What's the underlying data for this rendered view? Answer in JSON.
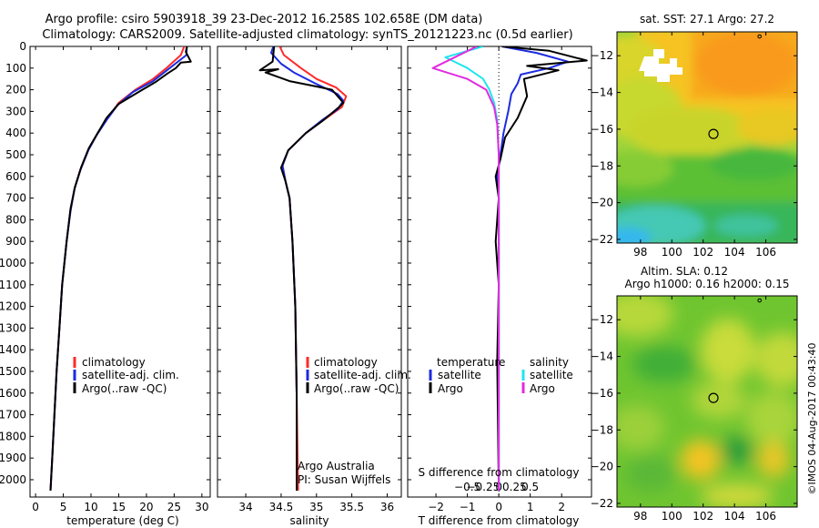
{
  "header": {
    "line1": "Argo profile: csiro 5903918_39 23-Dec-2012 16.258S 102.658E (DM data)",
    "line2": "Climatology: CARS2009. Satellite-adjusted climatology: synTS_20121223.nc (0.5d earlier)"
  },
  "colors": {
    "climatology": "#ff2a2a",
    "satellite": "#1c2be0",
    "argo": "#000000",
    "s_satellite": "#1fe5f0",
    "s_argo": "#e12be0"
  },
  "chart_data": [
    {
      "type": "line",
      "id": "temperature",
      "xlabel": "temperature (deg C)",
      "xlim": [
        -1,
        31.5
      ],
      "ylim": [
        2080,
        0
      ],
      "xticks": [
        0,
        5,
        10,
        15,
        20,
        25,
        30
      ],
      "yticks": [
        0,
        100,
        200,
        300,
        400,
        500,
        600,
        700,
        800,
        900,
        1000,
        1100,
        1200,
        1300,
        1400,
        1500,
        1600,
        1700,
        1800,
        1900,
        2000
      ],
      "legend": [
        "climatology",
        "satellite-adj. clim.",
        "Argo(..raw -QC)"
      ],
      "series": [
        {
          "name": "climatology",
          "color": "#ff2a2a",
          "points": [
            [
              26.8,
              0
            ],
            [
              26.2,
              40
            ],
            [
              23.6,
              100
            ],
            [
              21.2,
              150
            ],
            [
              18,
              200
            ],
            [
              15,
              260
            ],
            [
              13,
              330
            ],
            [
              11.2,
              400
            ],
            [
              9.6,
              470
            ],
            [
              8.2,
              560
            ],
            [
              7.1,
              650
            ],
            [
              6.3,
              750
            ],
            [
              5.6,
              900
            ],
            [
              4.8,
              1100
            ],
            [
              4.3,
              1300
            ],
            [
              3.8,
              1500
            ],
            [
              3.4,
              1700
            ],
            [
              3.0,
              1900
            ],
            [
              2.7,
              2050
            ]
          ]
        },
        {
          "name": "satellite-adj. clim.",
          "color": "#1c2be0",
          "points": [
            [
              27.3,
              0
            ],
            [
              27.2,
              40
            ],
            [
              24.2,
              100
            ],
            [
              21.2,
              160
            ],
            [
              17.6,
              210
            ],
            [
              14.8,
              270
            ],
            [
              12.8,
              340
            ],
            [
              11,
              410
            ],
            [
              9.5,
              480
            ],
            [
              8.1,
              570
            ],
            [
              7.0,
              660
            ],
            [
              6.3,
              760
            ],
            [
              5.6,
              900
            ],
            [
              4.8,
              1100
            ],
            [
              4.3,
              1300
            ],
            [
              3.8,
              1500
            ],
            [
              3.4,
              1700
            ],
            [
              3.0,
              1900
            ],
            [
              2.7,
              2050
            ]
          ]
        },
        {
          "name": "Argo(..raw -QC)",
          "color": "#000000",
          "points": [
            [
              27.3,
              0
            ],
            [
              27.1,
              25
            ],
            [
              28.0,
              70
            ],
            [
              26.2,
              75
            ],
            [
              25.3,
              100
            ],
            [
              23.8,
              125
            ],
            [
              21.6,
              165
            ],
            [
              18.6,
              210
            ],
            [
              15,
              265
            ],
            [
              12.8,
              330
            ],
            [
              11.2,
              400
            ],
            [
              9.6,
              470
            ],
            [
              8.2,
              560
            ],
            [
              7.1,
              650
            ],
            [
              6.3,
              750
            ],
            [
              5.6,
              900
            ],
            [
              4.8,
              1100
            ],
            [
              4.3,
              1300
            ],
            [
              3.8,
              1500
            ],
            [
              3.4,
              1700
            ],
            [
              3.0,
              1900
            ],
            [
              2.7,
              2050
            ]
          ]
        }
      ]
    },
    {
      "type": "line",
      "id": "salinity",
      "xlabel": "salinity",
      "xlim": [
        33.6,
        36.2
      ],
      "ylim": [
        2080,
        0
      ],
      "xticks": [
        34,
        34.5,
        35,
        35.5,
        36
      ],
      "legend": [
        "climatology",
        "satellite-adj. clim.",
        "Argo(..raw -QC)"
      ],
      "annotation": [
        "Argo Australia",
        "PI: Susan Wijffels"
      ],
      "series": [
        {
          "name": "climatology",
          "color": "#ff2a2a",
          "points": [
            [
              34.48,
              0
            ],
            [
              34.54,
              40
            ],
            [
              34.78,
              100
            ],
            [
              35.0,
              150
            ],
            [
              35.28,
              190
            ],
            [
              35.42,
              230
            ],
            [
              35.36,
              280
            ],
            [
              35.1,
              340
            ],
            [
              34.85,
              400
            ],
            [
              34.6,
              480
            ],
            [
              34.52,
              550
            ],
            [
              34.56,
              620
            ],
            [
              34.62,
              700
            ],
            [
              34.66,
              900
            ],
            [
              34.7,
              1200
            ],
            [
              34.72,
              1600
            ],
            [
              34.74,
              2050
            ]
          ]
        },
        {
          "name": "satellite-adj. clim.",
          "color": "#1c2be0",
          "points": [
            [
              34.39,
              0
            ],
            [
              34.36,
              30
            ],
            [
              34.5,
              80
            ],
            [
              34.68,
              120
            ],
            [
              34.98,
              170
            ],
            [
              35.3,
              220
            ],
            [
              35.38,
              250
            ],
            [
              35.3,
              290
            ],
            [
              35.08,
              340
            ],
            [
              34.85,
              400
            ],
            [
              34.6,
              480
            ],
            [
              34.52,
              550
            ],
            [
              34.56,
              620
            ],
            [
              34.62,
              700
            ],
            [
              34.66,
              900
            ],
            [
              34.7,
              1200
            ],
            [
              34.72,
              1600
            ],
            [
              34.72,
              2050
            ]
          ]
        },
        {
          "name": "Argo(..raw -QC)",
          "color": "#000000",
          "points": [
            [
              34.4,
              0
            ],
            [
              34.38,
              70
            ],
            [
              34.2,
              110
            ],
            [
              34.46,
              105
            ],
            [
              34.28,
              120
            ],
            [
              34.62,
              160
            ],
            [
              35.0,
              185
            ],
            [
              35.22,
              200
            ],
            [
              35.3,
              230
            ],
            [
              35.38,
              260
            ],
            [
              35.32,
              280
            ],
            [
              35.1,
              340
            ],
            [
              34.85,
              400
            ],
            [
              34.6,
              480
            ],
            [
              34.5,
              560
            ],
            [
              34.56,
              620
            ],
            [
              34.62,
              700
            ],
            [
              34.66,
              900
            ],
            [
              34.7,
              1200
            ],
            [
              34.72,
              1600
            ],
            [
              34.72,
              2050
            ]
          ]
        }
      ]
    },
    {
      "type": "line",
      "id": "difference",
      "xlabel": "T difference from climatology",
      "xlabel_top": "S difference from climatology",
      "xlim": [
        -2.9,
        2.95
      ],
      "ylim": [
        2080,
        0
      ],
      "xticks": [
        -2,
        -1,
        0,
        1,
        2
      ],
      "sticks": [
        -0.5,
        -0.25,
        0,
        0.25,
        0.5
      ],
      "stick_labels": [
        "−0.5",
        "−0.25",
        "0",
        "0.25",
        "0.5"
      ],
      "legend_temperature": {
        "title": "temperature",
        "items": [
          "satellite",
          "Argo"
        ]
      },
      "legend_salinity": {
        "title": "salinity",
        "items": [
          "satellite",
          "Argo"
        ]
      },
      "series": [
        {
          "name": "T satellite",
          "color": "#1c2be0",
          "points": [
            [
              0.1,
              0
            ],
            [
              1.2,
              30
            ],
            [
              2.2,
              70
            ],
            [
              1.6,
              100
            ],
            [
              0.7,
              130
            ],
            [
              0.6,
              170
            ],
            [
              0.4,
              220
            ],
            [
              0.3,
              300
            ],
            [
              0.15,
              400
            ],
            [
              0.05,
              500
            ],
            [
              -0.05,
              600
            ],
            [
              0,
              700
            ],
            [
              0,
              900
            ],
            [
              0,
              2050
            ]
          ]
        },
        {
          "name": "T Argo",
          "color": "#000000",
          "points": [
            [
              0.1,
              0
            ],
            [
              1.6,
              20
            ],
            [
              2.8,
              65
            ],
            [
              0.9,
              90
            ],
            [
              1.9,
              110
            ],
            [
              0.8,
              150
            ],
            [
              0.9,
              230
            ],
            [
              0.6,
              330
            ],
            [
              0.2,
              420
            ],
            [
              0.05,
              520
            ],
            [
              -0.1,
              600
            ],
            [
              0,
              700
            ],
            [
              -0.1,
              900
            ],
            [
              0,
              1100
            ],
            [
              -0.05,
              1450
            ],
            [
              0,
              2050
            ]
          ]
        },
        {
          "name": "S satellite",
          "color": "#1fe5f0",
          "points": [
            [
              -0.5,
              0
            ],
            [
              -1.7,
              50
            ],
            [
              -1.0,
              100
            ],
            [
              -0.5,
              150
            ],
            [
              -0.3,
              200
            ],
            [
              -0.15,
              260
            ],
            [
              -0.05,
              340
            ],
            [
              0,
              500
            ],
            [
              0,
              2050
            ]
          ]
        },
        {
          "name": "S Argo",
          "color": "#e12be0",
          "points": [
            [
              -0.7,
              0
            ],
            [
              -2.1,
              100
            ],
            [
              -1.0,
              150
            ],
            [
              -0.4,
              200
            ],
            [
              -0.15,
              280
            ],
            [
              -0.05,
              360
            ],
            [
              0,
              500
            ],
            [
              0,
              2050
            ]
          ]
        }
      ]
    },
    {
      "type": "heatmap",
      "id": "sst_map",
      "title": "sat. SST: 27.1  Argo: 27.2",
      "xlim": [
        96.5,
        108
      ],
      "ylim": [
        -22.2,
        -10.7
      ],
      "xticks": [
        98,
        100,
        102,
        104,
        106
      ],
      "yticks": [
        -12,
        -14,
        -16,
        -18,
        -20,
        -22
      ],
      "float_position": [
        102.658,
        -16.258
      ],
      "marker_position": [
        105.6,
        -10.8
      ]
    },
    {
      "type": "heatmap",
      "id": "sla_map",
      "title_line1": "Altim. SLA: 0.12",
      "title_line2": "Argo h1000: 0.16  h2000: 0.15",
      "xlim": [
        96.5,
        108
      ],
      "ylim": [
        -22.2,
        -10.7
      ],
      "xticks": [
        98,
        100,
        102,
        104,
        106
      ],
      "yticks": [
        -12,
        -14,
        -16,
        -18,
        -20,
        -22
      ],
      "float_position": [
        102.658,
        -16.258
      ],
      "marker_position": [
        105.6,
        -10.8
      ]
    }
  ],
  "side_stamp": "©IMOS 04-Aug-2017 00:43:40"
}
